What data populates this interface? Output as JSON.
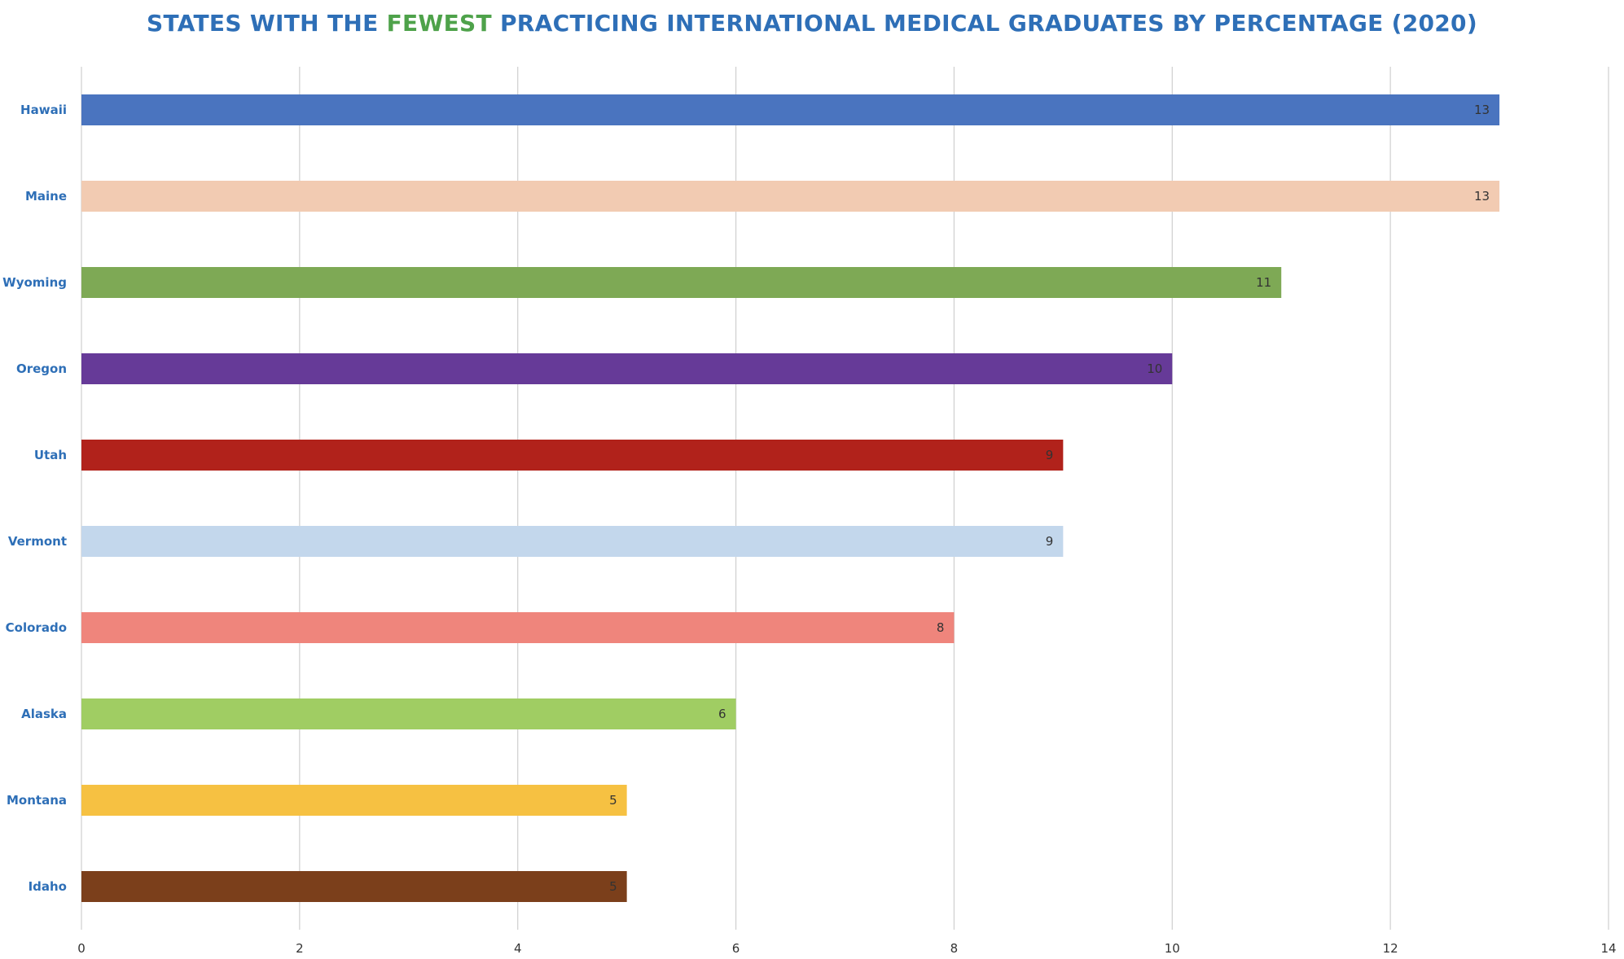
{
  "title": {
    "part1": "STATES WITH THE ",
    "highlight": "FEWEST",
    "part2": " PRACTICING INTERNATIONAL MEDICAL GRADUATES BY PERCENTAGE (2020)",
    "color": "#2e6fb7",
    "highlight_color": "#4ea24a"
  },
  "chart_data": {
    "type": "bar",
    "orientation": "horizontal",
    "title": "STATES WITH THE FEWEST PRACTICING INTERNATIONAL MEDICAL GRADUATES BY PERCENTAGE (2020)",
    "categories": [
      "Hawaii",
      "Maine",
      "Wyoming",
      "Oregon",
      "Utah",
      "Vermont",
      "Colorado",
      "Alaska",
      "Montana",
      "Idaho"
    ],
    "values": [
      13,
      13,
      11,
      10,
      9,
      9,
      8,
      6,
      5,
      5
    ],
    "colors": [
      "#4a74bf",
      "#f2cbb2",
      "#7ea955",
      "#663a98",
      "#b1221b",
      "#c3d7ec",
      "#ef857c",
      "#a0cd63",
      "#f6c142",
      "#7b3f1b"
    ],
    "xlim": [
      0,
      14
    ],
    "xticks": [
      0,
      2,
      4,
      6,
      8,
      10,
      12,
      14
    ],
    "grid": true,
    "legend": "none",
    "xlabel": "",
    "ylabel": "",
    "category_label_color": "#2e6fb7",
    "gridline_color": "#cfcfcf"
  }
}
